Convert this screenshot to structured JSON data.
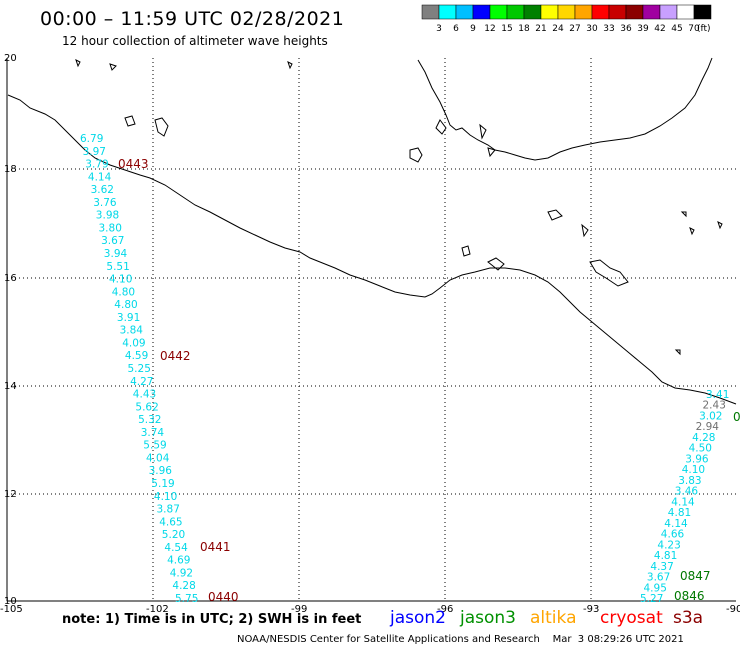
{
  "header": {
    "title": "00:00 – 11:59 UTC 02/28/2021",
    "subtitle": "12 hour collection of altimeter wave heights"
  },
  "colorbar": {
    "labels": [
      "3",
      "6",
      "9",
      "12",
      "15",
      "18",
      "21",
      "24",
      "27",
      "30",
      "33",
      "36",
      "39",
      "42",
      "45",
      "70"
    ],
    "unit": "(ft)",
    "colors": [
      "#808080",
      "#00ffff",
      "#00bfff",
      "#0000ff",
      "#00ff00",
      "#00c800",
      "#008000",
      "#ffff00",
      "#ffd700",
      "#ffa500",
      "#ff0000",
      "#c80000",
      "#8b0000",
      "#a000a0",
      "#c8a0ff",
      "#ffffff",
      "#000000"
    ]
  },
  "axes": {
    "x_ticks": [
      "-105",
      "-102",
      "-99",
      "-96",
      "-93",
      "-90"
    ],
    "y_ticks": [
      "20",
      "18",
      "16",
      "14",
      "12",
      "10"
    ]
  },
  "tracks": {
    "west": {
      "color": "#00d8e8",
      "values": [
        "6.79",
        "3.97",
        "3.79",
        "4.14",
        "3.62",
        "3.76",
        "3.98",
        "3.80",
        "3.67",
        "3.94",
        "5.51",
        "4.10",
        "4.80",
        "4.80",
        "3.91",
        "3.84",
        "4.09",
        "4.59",
        "5.25",
        "4.27",
        "4.43",
        "5.62",
        "5.32",
        "3.74",
        "5.59",
        "4.04",
        "3.96",
        "5.19",
        "4.10",
        "3.87",
        "4.65",
        "5.20",
        "4.54",
        "4.69",
        "4.92",
        "4.28",
        "5.75"
      ]
    },
    "east": {
      "color": "#00d8e8",
      "values": [
        "3.41",
        "2.43",
        "3.02",
        "2.94",
        "4.28",
        "4.50",
        "3.96",
        "4.10",
        "3.83",
        "3.46",
        "4.14",
        "4.81",
        "4.14",
        "4.66",
        "4.23",
        "4.81",
        "4.37",
        "3.67",
        "4.95",
        "5.27"
      ],
      "gray_values": [
        "2.43",
        "2.94"
      ]
    }
  },
  "times": {
    "red": [
      "0443",
      "0442",
      "0441",
      "0440"
    ],
    "green": [
      "0847",
      "0846",
      "0"
    ]
  },
  "legend": {
    "note": "note:  1) Time is in UTC;  2) SWH is in feet",
    "satellites": [
      {
        "name": "jason2",
        "color": "#0000ff"
      },
      {
        "name": "jason3",
        "color": "#009000"
      },
      {
        "name": "altika",
        "color": "#ffa500"
      },
      {
        "name": "cryosat",
        "color": "#ff0000"
      },
      {
        "name": "s3a",
        "color": "#8b0000"
      }
    ]
  },
  "footer": "NOAA/NESDIS Center for Satellite Applications and Research    Mar  3 08:29:26 UTC 2021"
}
